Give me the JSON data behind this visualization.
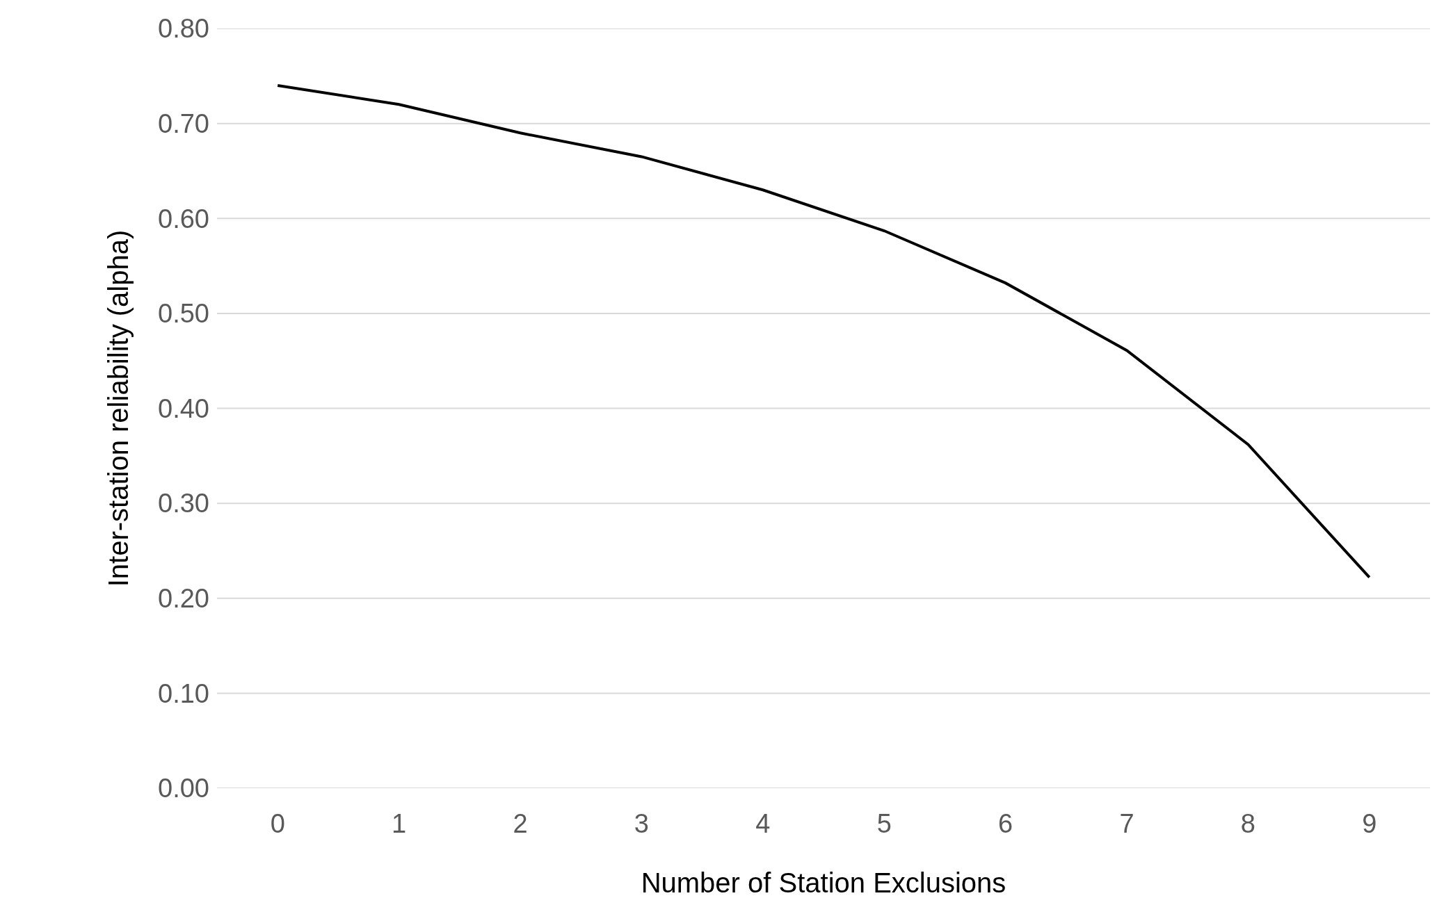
{
  "chart_data": {
    "type": "line",
    "xlabel": "Number of Station Exclusions",
    "ylabel": "Inter-station reliability (alpha)",
    "categories": [
      "0",
      "1",
      "2",
      "3",
      "4",
      "5",
      "6",
      "7",
      "8",
      "9"
    ],
    "series": [
      {
        "color": "#000000",
        "values": [
          0.74,
          0.72,
          0.69,
          0.665,
          0.63,
          0.587,
          0.532,
          0.461,
          0.362,
          0.222
        ]
      }
    ],
    "ylim": [
      0,
      0.8
    ],
    "yticks": [
      {
        "value": 0,
        "label": "0.00"
      },
      {
        "value": 0.1,
        "label": "0.10"
      },
      {
        "value": 0.2,
        "label": "0.20"
      },
      {
        "value": 0.3,
        "label": "0.30"
      },
      {
        "value": 0.4,
        "label": "0.40"
      },
      {
        "value": 0.5,
        "label": "0.50"
      },
      {
        "value": 0.6,
        "label": "0.60"
      },
      {
        "value": 0.7,
        "label": "0.70"
      },
      {
        "value": 0.8,
        "label": "0.80"
      }
    ],
    "grid": "y"
  }
}
